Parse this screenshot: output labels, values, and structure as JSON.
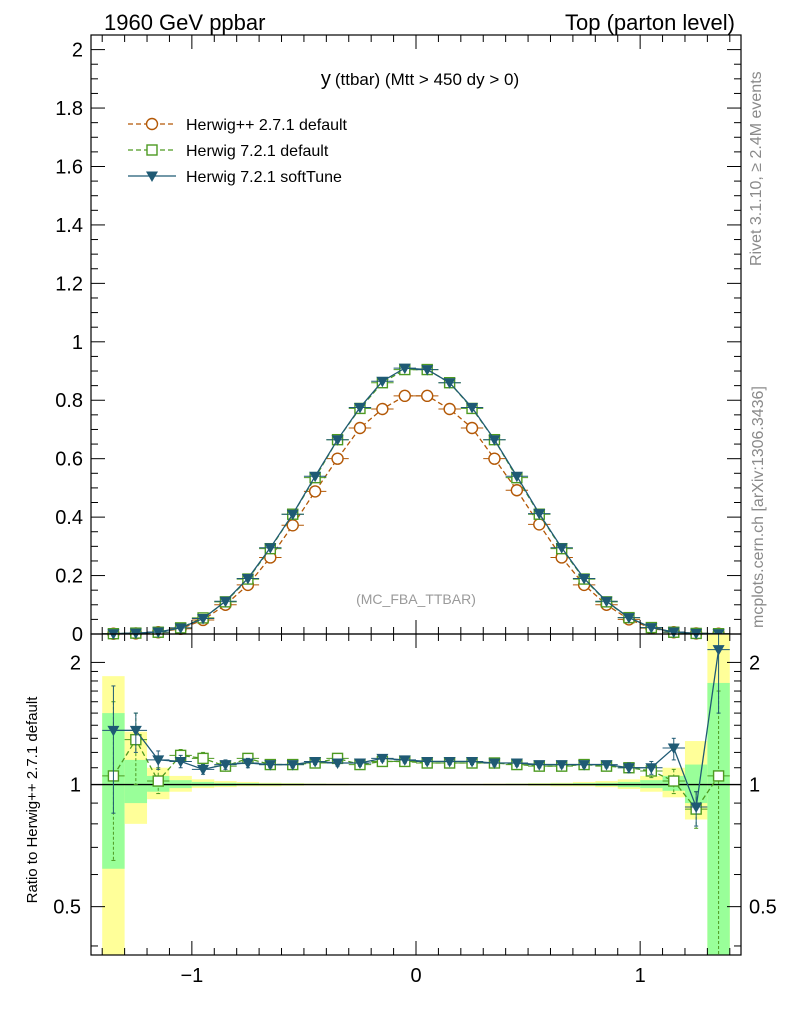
{
  "header": {
    "left": "1960 GeV ppbar",
    "right": "Top (parton level)"
  },
  "side_labels": {
    "rivet": "Rivet 3.1.10, ≥ 2.4M events",
    "source": "mcplots.cern.ch [arXiv:1306.3436]"
  },
  "colors": {
    "herwigpp": "#b35806",
    "herwig721_default": "#4d9a21",
    "herwig721_softtune": "#1f5a74",
    "band_yellow": "#ffff99",
    "band_green": "#99ff99"
  },
  "chart_data": [
    {
      "type": "line",
      "title": "y (ttbar) (Mtt > 450 dy > 0)",
      "title_main": "y",
      "title_sub": "(ttbar) (Mtt > 450 dy > 0)",
      "watermark": "(MC_FBA_TTBAR)",
      "xlim": [
        -1.45,
        1.45
      ],
      "ylim": [
        0,
        2.05
      ],
      "y_ticks": [
        "0",
        "0.2",
        "0.4",
        "0.6",
        "0.8",
        "1",
        "1.2",
        "1.4",
        "1.6",
        "1.8",
        "2"
      ],
      "y_tick_values": [
        0,
        0.2,
        0.4,
        0.6,
        0.8,
        1.0,
        1.2,
        1.4,
        1.6,
        1.8,
        2.0
      ],
      "legend_position": "top-left",
      "x": [
        -1.35,
        -1.25,
        -1.15,
        -1.05,
        -0.95,
        -0.85,
        -0.75,
        -0.65,
        -0.55,
        -0.45,
        -0.35,
        -0.25,
        -0.15,
        -0.05,
        0.05,
        0.15,
        0.25,
        0.35,
        0.45,
        0.55,
        0.65,
        0.75,
        0.85,
        0.95,
        1.05,
        1.15,
        1.25,
        1.35
      ],
      "series": [
        {
          "name": "Herwig++ 2.7.1 default",
          "marker": "circle",
          "dash": true,
          "values": [
            0.001,
            0.002,
            0.006,
            0.018,
            0.048,
            0.1,
            0.168,
            0.262,
            0.372,
            0.488,
            0.6,
            0.705,
            0.77,
            0.815,
            0.815,
            0.77,
            0.705,
            0.6,
            0.492,
            0.375,
            0.262,
            0.168,
            0.1,
            0.05,
            0.02,
            0.006,
            0.002,
            0.001
          ]
        },
        {
          "name": "Herwig 7.2.1 default",
          "marker": "square",
          "dash": true,
          "values": [
            0.001,
            0.003,
            0.006,
            0.021,
            0.055,
            0.11,
            0.188,
            0.292,
            0.41,
            0.535,
            0.665,
            0.772,
            0.86,
            0.905,
            0.905,
            0.86,
            0.772,
            0.665,
            0.535,
            0.41,
            0.292,
            0.188,
            0.11,
            0.056,
            0.022,
            0.006,
            0.002,
            0.001
          ]
        },
        {
          "name": "Herwig 7.2.1 softTune",
          "marker": "triangle-down",
          "dash": false,
          "values": [
            0.001,
            0.003,
            0.007,
            0.021,
            0.053,
            0.112,
            0.19,
            0.295,
            0.41,
            0.54,
            0.665,
            0.775,
            0.865,
            0.91,
            0.905,
            0.86,
            0.775,
            0.665,
            0.54,
            0.412,
            0.295,
            0.19,
            0.112,
            0.056,
            0.022,
            0.007,
            0.002,
            0.001
          ]
        }
      ]
    },
    {
      "type": "line",
      "ylabel": "Ratio to Herwig++ 2.7.1 default",
      "xlim": [
        -1.45,
        1.45
      ],
      "ylim": [
        0.38,
        2.35
      ],
      "y_log": true,
      "x_ticks": [
        "−1",
        "0",
        "1"
      ],
      "x_tick_values": [
        -1,
        0,
        1
      ],
      "y_ticks": [
        "0.5",
        "1",
        "2"
      ],
      "y_tick_values": [
        0.5,
        1,
        2
      ],
      "x": [
        -1.35,
        -1.25,
        -1.15,
        -1.05,
        -0.95,
        -0.85,
        -0.75,
        -0.65,
        -0.55,
        -0.45,
        -0.35,
        -0.25,
        -0.15,
        -0.05,
        0.05,
        0.15,
        0.25,
        0.35,
        0.45,
        0.55,
        0.65,
        0.75,
        0.85,
        0.95,
        1.05,
        1.15,
        1.25,
        1.35
      ],
      "band_yellow": [
        [
          0.34,
          1.85
        ],
        [
          0.8,
          1.35
        ],
        [
          0.92,
          1.1
        ],
        [
          0.96,
          1.05
        ],
        [
          0.98,
          1.03
        ],
        [
          0.985,
          1.02
        ],
        [
          0.99,
          1.015
        ],
        [
          0.99,
          1.01
        ],
        [
          0.993,
          1.008
        ],
        [
          0.995,
          1.006
        ],
        [
          0.995,
          1.005
        ],
        [
          0.996,
          1.004
        ],
        [
          0.997,
          1.004
        ],
        [
          0.997,
          1.003
        ],
        [
          0.997,
          1.003
        ],
        [
          0.997,
          1.004
        ],
        [
          0.996,
          1.004
        ],
        [
          0.995,
          1.005
        ],
        [
          0.995,
          1.006
        ],
        [
          0.993,
          1.008
        ],
        [
          0.99,
          1.01
        ],
        [
          0.99,
          1.015
        ],
        [
          0.985,
          1.02
        ],
        [
          0.975,
          1.03
        ],
        [
          0.96,
          1.05
        ],
        [
          0.93,
          1.1
        ],
        [
          0.82,
          1.28
        ],
        [
          0.34,
          2.35
        ]
      ],
      "band_green": [
        [
          0.62,
          1.5
        ],
        [
          0.9,
          1.15
        ],
        [
          0.96,
          1.05
        ],
        [
          0.98,
          1.025
        ],
        [
          0.99,
          1.015
        ],
        [
          0.992,
          1.01
        ],
        [
          0.995,
          1.008
        ],
        [
          0.995,
          1.006
        ],
        [
          0.996,
          1.005
        ],
        [
          0.997,
          1.004
        ],
        [
          0.997,
          1.003
        ],
        [
          0.998,
          1.003
        ],
        [
          0.998,
          1.002
        ],
        [
          0.998,
          1.002
        ],
        [
          0.998,
          1.002
        ],
        [
          0.998,
          1.002
        ],
        [
          0.998,
          1.003
        ],
        [
          0.997,
          1.003
        ],
        [
          0.997,
          1.004
        ],
        [
          0.996,
          1.005
        ],
        [
          0.995,
          1.006
        ],
        [
          0.995,
          1.008
        ],
        [
          0.992,
          1.01
        ],
        [
          0.985,
          1.015
        ],
        [
          0.98,
          1.025
        ],
        [
          0.965,
          1.05
        ],
        [
          0.9,
          1.12
        ],
        [
          0.34,
          1.78
        ]
      ],
      "series": [
        {
          "name": "Herwig 7.2.1 default",
          "marker": "square",
          "dash": true,
          "values": [
            1.05,
            1.29,
            1.02,
            1.18,
            1.16,
            1.11,
            1.16,
            1.12,
            1.12,
            1.13,
            1.16,
            1.12,
            1.14,
            1.14,
            1.13,
            1.13,
            1.13,
            1.13,
            1.12,
            1.11,
            1.11,
            1.12,
            1.11,
            1.1,
            1.08,
            1.02,
            0.87,
            1.05
          ],
          "err_low": [
            0.65,
            1.0,
            0.95,
            1.14,
            1.12,
            1.08,
            1.13,
            1.1,
            1.1,
            1.11,
            1.14,
            1.1,
            1.12,
            1.12,
            1.11,
            1.11,
            1.11,
            1.11,
            1.1,
            1.09,
            1.09,
            1.1,
            1.09,
            1.07,
            1.04,
            0.95,
            0.78,
            0.38
          ],
          "err_high": [
            1.6,
            1.5,
            1.1,
            1.22,
            1.2,
            1.14,
            1.19,
            1.14,
            1.14,
            1.15,
            1.18,
            1.14,
            1.16,
            1.16,
            1.15,
            1.15,
            1.15,
            1.15,
            1.14,
            1.13,
            1.13,
            1.14,
            1.13,
            1.13,
            1.12,
            1.09,
            0.96,
            1.7
          ]
        },
        {
          "name": "Herwig 7.2.1 softTune",
          "marker": "triangle-down",
          "dash": false,
          "values": [
            1.36,
            1.36,
            1.15,
            1.14,
            1.09,
            1.12,
            1.13,
            1.12,
            1.12,
            1.14,
            1.13,
            1.13,
            1.16,
            1.15,
            1.14,
            1.14,
            1.14,
            1.13,
            1.13,
            1.12,
            1.12,
            1.12,
            1.12,
            1.1,
            1.1,
            1.23,
            0.88,
            2.15
          ],
          "err_low": [
            0.85,
            1.2,
            1.09,
            1.1,
            1.06,
            1.09,
            1.1,
            1.1,
            1.1,
            1.12,
            1.11,
            1.11,
            1.14,
            1.13,
            1.12,
            1.12,
            1.12,
            1.11,
            1.11,
            1.1,
            1.1,
            1.1,
            1.1,
            1.07,
            1.06,
            1.15,
            0.79,
            1.5
          ],
          "err_high": [
            1.75,
            1.5,
            1.21,
            1.18,
            1.12,
            1.15,
            1.16,
            1.14,
            1.14,
            1.16,
            1.15,
            1.15,
            1.18,
            1.17,
            1.16,
            1.16,
            1.16,
            1.15,
            1.15,
            1.14,
            1.14,
            1.14,
            1.14,
            1.13,
            1.14,
            1.3,
            0.96,
            2.35
          ]
        }
      ]
    }
  ]
}
